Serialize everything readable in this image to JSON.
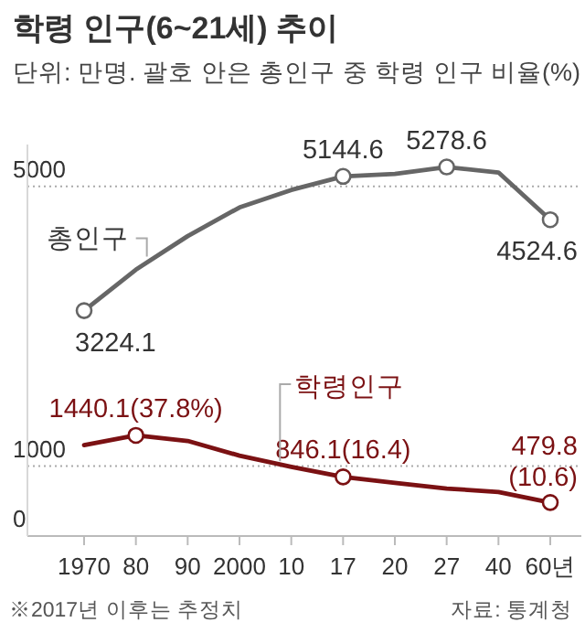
{
  "chart_data": {
    "type": "line",
    "title": "학령 인구(6~21세) 추이",
    "subtitle": "단위: 만명. 괄호 안은 총인구 중 학령 인구 비율(%)",
    "categories": [
      "1970",
      "80",
      "90",
      "2000",
      "10",
      "17",
      "20",
      "27",
      "40",
      "60년"
    ],
    "series": [
      {
        "name": "총인구",
        "color": "#666666",
        "values": [
          3224.1,
          3810,
          4290,
          4700,
          4950,
          5144.6,
          5180,
          5278.6,
          5200,
          4524.6
        ],
        "value_labels": [
          "3224.1",
          null,
          null,
          null,
          null,
          "5144.6",
          null,
          "5278.6",
          null,
          "4524.6"
        ]
      },
      {
        "name": "학령인구",
        "color": "#7b1113",
        "values": [
          1300,
          1440.1,
          1360,
          1150,
          990,
          846.1,
          760,
          680,
          630,
          479.8
        ],
        "value_labels": [
          null,
          "1440.1(37.8%)",
          null,
          null,
          null,
          "846.1(16.4)",
          null,
          null,
          null,
          "479.8\n(10.6)"
        ]
      }
    ],
    "ylim": [
      0,
      5600
    ],
    "yticks": [
      0,
      1000,
      5000
    ],
    "grid": "y",
    "annotations": [
      "※2017년 이후는 추정치",
      "자료: 통계청"
    ]
  }
}
